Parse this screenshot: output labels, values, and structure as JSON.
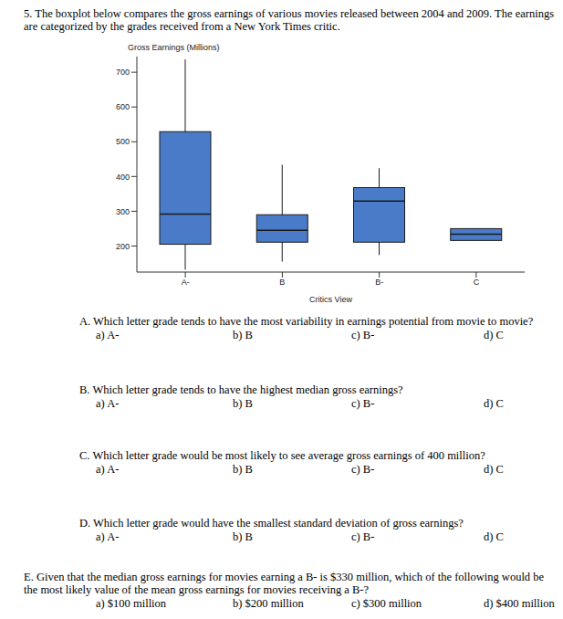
{
  "question": {
    "number": "5.",
    "text": "The boxplot below compares the gross earnings of various movies released between 2004 and 2009. The earnings are categorized by the grades received from a New York Times critic."
  },
  "chart_data": {
    "type": "boxplot",
    "title": "Gross Earnings (Millions)",
    "x_label": "Critics View",
    "categories": [
      "A-",
      "B",
      "B-",
      "C"
    ],
    "min": [
      132,
      155,
      174,
      216
    ],
    "q1": [
      205,
      211,
      211,
      216
    ],
    "median": [
      292,
      245,
      329,
      234
    ],
    "q3": [
      529,
      290,
      368,
      250
    ],
    "max": [
      737,
      434,
      424,
      250
    ],
    "color": "#4a7bc8",
    "ylim": [
      125,
      745
    ],
    "yticks": [
      200,
      300,
      400,
      500,
      600,
      700
    ],
    "grid": false
  },
  "questions": [
    {
      "label": "A.",
      "text": "Which letter grade tends to have the most variability in earnings potential from movie to movie?",
      "options": [
        "a) A-",
        "b) B",
        "c) B-",
        "d) C"
      ]
    },
    {
      "label": "B.",
      "text": "Which letter grade tends to have the highest median gross earnings?",
      "options": [
        "a) A-",
        "b) B",
        "c) B-",
        "d) C"
      ]
    },
    {
      "label": "C.",
      "text": "Which letter grade would be most likely to see average gross earnings of 400 million?",
      "options": [
        "a) A-",
        "b) B",
        "c) B-",
        "d) C"
      ]
    },
    {
      "label": "D.",
      "text": "Which letter grade would have the smallest standard deviation of gross earnings?",
      "options": [
        "a) A-",
        "b) B",
        "c) B-",
        "d) C"
      ]
    },
    {
      "label": "E.",
      "text": "Given that the median gross earnings for movies earning a B- is $330 million, which of the following would be the most likely value of the mean gross earnings for movies receiving a B-?",
      "options": [
        "a) $100 million",
        "b) $200 million",
        "c) $300 million",
        "d) $400 million"
      ]
    }
  ]
}
